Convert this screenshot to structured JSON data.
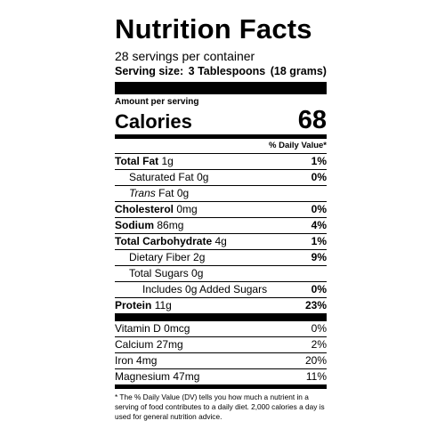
{
  "header": {
    "title": "Nutrition Facts",
    "servings": "28 servings per container",
    "serving_size_label": "Serving size:",
    "serving_size": "3 Tablespoons",
    "serving_grams": "(18 grams)"
  },
  "calories": {
    "amount_label": "Amount per serving",
    "label": "Calories",
    "value": "68"
  },
  "daily_value_header": "% Daily Value*",
  "nutrients": [
    {
      "name": "Total Fat",
      "amount": "1g",
      "dv": "1%"
    },
    {
      "name": "Saturated Fat",
      "amount": "0g",
      "dv": "0%"
    },
    {
      "name_italic": "Trans",
      "name": "Fat",
      "amount": "0g"
    },
    {
      "name": "Cholesterol",
      "amount": "0mg",
      "dv": "0%"
    },
    {
      "name": "Sodium",
      "amount": "86mg",
      "dv": "4%"
    },
    {
      "name": "Total Carbohydrate",
      "amount": "4g",
      "dv": "1%"
    },
    {
      "name": "Dietary Fiber",
      "amount": "2g",
      "dv": "9%"
    },
    {
      "name": "Total Sugars",
      "amount": "0g"
    },
    {
      "name": "Includes 0g Added Sugars",
      "dv": "0%"
    },
    {
      "name": "Protein",
      "amount": "11g",
      "dv": "23%"
    }
  ],
  "vitamins_minerals": [
    {
      "name": "Vitamin D",
      "amount": "0mcg",
      "dv": "0%"
    },
    {
      "name": "Calcium",
      "amount": "27mg",
      "dv": "2%"
    },
    {
      "name": "Iron",
      "amount": "4mg",
      "dv": "20%"
    },
    {
      "name": "Magnesium",
      "amount": "47mg",
      "dv": "11%"
    }
  ],
  "footnote": "* The % Daily Value (DV) tells you how much a nutrient in a serving of food contributes to a daily diet. 2,000 calories a day is used for general nutrition advice."
}
